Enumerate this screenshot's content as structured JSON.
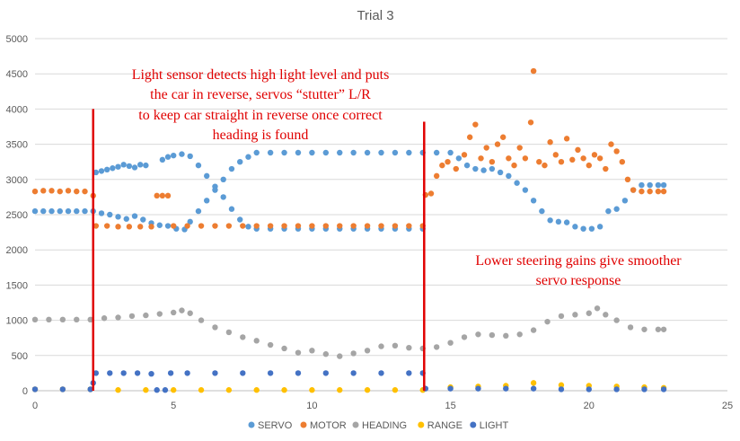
{
  "chart_data": {
    "type": "scatter",
    "title": "Trial 3",
    "xlabel": "",
    "ylabel": "",
    "xlim": [
      0,
      25
    ],
    "ylim": [
      0,
      5000
    ],
    "x_ticks": [
      0,
      5,
      10,
      15,
      20,
      25
    ],
    "y_ticks": [
      0,
      500,
      1000,
      1500,
      2000,
      2500,
      3000,
      3500,
      4000,
      4500,
      5000
    ],
    "grid": true,
    "legend_position": "bottom",
    "series": [
      {
        "name": "SERVO",
        "color": "#5b9bd5",
        "points": [
          [
            0.0,
            2550
          ],
          [
            0.3,
            2550
          ],
          [
            0.6,
            2550
          ],
          [
            0.9,
            2550
          ],
          [
            1.2,
            2550
          ],
          [
            1.5,
            2550
          ],
          [
            1.8,
            2550
          ],
          [
            2.1,
            2550
          ],
          [
            2.2,
            3100
          ],
          [
            2.4,
            3120
          ],
          [
            2.6,
            3140
          ],
          [
            2.8,
            3160
          ],
          [
            3.0,
            3180
          ],
          [
            3.2,
            3210
          ],
          [
            3.4,
            3190
          ],
          [
            3.6,
            3170
          ],
          [
            3.8,
            3210
          ],
          [
            4.0,
            3200
          ],
          [
            2.4,
            2520
          ],
          [
            2.7,
            2500
          ],
          [
            3.0,
            2470
          ],
          [
            3.3,
            2440
          ],
          [
            3.6,
            2480
          ],
          [
            3.9,
            2430
          ],
          [
            4.2,
            2380
          ],
          [
            4.5,
            2350
          ],
          [
            4.8,
            2340
          ],
          [
            5.1,
            2300
          ],
          [
            5.4,
            2290
          ],
          [
            4.6,
            3280
          ],
          [
            4.8,
            3320
          ],
          [
            5.0,
            3340
          ],
          [
            5.3,
            3360
          ],
          [
            5.6,
            3330
          ],
          [
            5.9,
            3200
          ],
          [
            6.2,
            3050
          ],
          [
            6.5,
            2900
          ],
          [
            6.8,
            2750
          ],
          [
            7.1,
            2580
          ],
          [
            7.4,
            2430
          ],
          [
            7.7,
            2330
          ],
          [
            8.0,
            2300
          ],
          [
            5.6,
            2400
          ],
          [
            5.9,
            2550
          ],
          [
            6.2,
            2700
          ],
          [
            6.5,
            2850
          ],
          [
            6.8,
            3000
          ],
          [
            7.1,
            3150
          ],
          [
            7.4,
            3250
          ],
          [
            7.7,
            3320
          ],
          [
            8.0,
            3380
          ],
          [
            8.5,
            3380
          ],
          [
            9.0,
            3380
          ],
          [
            9.5,
            3380
          ],
          [
            10,
            3380
          ],
          [
            10.5,
            3380
          ],
          [
            11,
            3380
          ],
          [
            11.5,
            3380
          ],
          [
            12,
            3380
          ],
          [
            12.5,
            3380
          ],
          [
            13,
            3380
          ],
          [
            13.5,
            3380
          ],
          [
            14,
            3380
          ],
          [
            14.5,
            3380
          ],
          [
            15,
            3380
          ],
          [
            8.5,
            2300
          ],
          [
            9.0,
            2300
          ],
          [
            9.5,
            2300
          ],
          [
            10,
            2300
          ],
          [
            10.5,
            2300
          ],
          [
            11,
            2300
          ],
          [
            11.5,
            2300
          ],
          [
            12,
            2300
          ],
          [
            12.5,
            2300
          ],
          [
            13,
            2300
          ],
          [
            13.5,
            2300
          ],
          [
            14,
            2300
          ],
          [
            15.3,
            3300
          ],
          [
            15.6,
            3200
          ],
          [
            15.9,
            3150
          ],
          [
            16.2,
            3130
          ],
          [
            16.5,
            3150
          ],
          [
            16.8,
            3100
          ],
          [
            17.1,
            3050
          ],
          [
            17.4,
            2950
          ],
          [
            17.7,
            2850
          ],
          [
            18.0,
            2700
          ],
          [
            18.3,
            2550
          ],
          [
            18.6,
            2420
          ],
          [
            18.9,
            2400
          ],
          [
            19.2,
            2390
          ],
          [
            19.5,
            2330
          ],
          [
            19.8,
            2300
          ],
          [
            20.1,
            2300
          ],
          [
            20.4,
            2330
          ],
          [
            20.7,
            2550
          ],
          [
            21.0,
            2580
          ],
          [
            21.3,
            2700
          ],
          [
            21.6,
            2850
          ],
          [
            21.9,
            2920
          ],
          [
            22.2,
            2920
          ],
          [
            22.5,
            2920
          ],
          [
            22.7,
            2920
          ]
        ]
      },
      {
        "name": "MOTOR",
        "color": "#ed7d31",
        "points": [
          [
            0.0,
            2830
          ],
          [
            0.3,
            2840
          ],
          [
            0.6,
            2840
          ],
          [
            0.9,
            2830
          ],
          [
            1.2,
            2840
          ],
          [
            1.5,
            2830
          ],
          [
            1.8,
            2830
          ],
          [
            2.1,
            2770
          ],
          [
            2.2,
            2340
          ],
          [
            2.6,
            2340
          ],
          [
            3.0,
            2330
          ],
          [
            3.4,
            2330
          ],
          [
            3.8,
            2330
          ],
          [
            4.2,
            2330
          ],
          [
            4.4,
            2770
          ],
          [
            4.6,
            2770
          ],
          [
            4.8,
            2770
          ],
          [
            5.0,
            2340
          ],
          [
            5.5,
            2340
          ],
          [
            6.0,
            2340
          ],
          [
            6.5,
            2340
          ],
          [
            7.0,
            2340
          ],
          [
            7.5,
            2340
          ],
          [
            8.0,
            2340
          ],
          [
            8.5,
            2340
          ],
          [
            9.0,
            2340
          ],
          [
            9.5,
            2340
          ],
          [
            10,
            2340
          ],
          [
            10.5,
            2340
          ],
          [
            11,
            2340
          ],
          [
            11.5,
            2340
          ],
          [
            12,
            2340
          ],
          [
            12.5,
            2340
          ],
          [
            13,
            2340
          ],
          [
            13.5,
            2340
          ],
          [
            14,
            2340
          ],
          [
            14.1,
            2780
          ],
          [
            14.3,
            2800
          ],
          [
            14.5,
            3050
          ],
          [
            14.7,
            3200
          ],
          [
            14.9,
            3250
          ],
          [
            15.2,
            3150
          ],
          [
            15.5,
            3350
          ],
          [
            15.7,
            3600
          ],
          [
            15.9,
            3780
          ],
          [
            16.1,
            3300
          ],
          [
            16.3,
            3450
          ],
          [
            16.5,
            3250
          ],
          [
            16.7,
            3500
          ],
          [
            16.9,
            3600
          ],
          [
            17.1,
            3300
          ],
          [
            17.3,
            3200
          ],
          [
            17.5,
            3450
          ],
          [
            17.7,
            3300
          ],
          [
            17.9,
            3810
          ],
          [
            18.0,
            4540
          ],
          [
            18.2,
            3250
          ],
          [
            18.4,
            3200
          ],
          [
            18.6,
            3530
          ],
          [
            18.8,
            3350
          ],
          [
            19.0,
            3250
          ],
          [
            19.2,
            3580
          ],
          [
            19.4,
            3280
          ],
          [
            19.6,
            3420
          ],
          [
            19.8,
            3300
          ],
          [
            20.0,
            3200
          ],
          [
            20.2,
            3350
          ],
          [
            20.4,
            3300
          ],
          [
            20.6,
            3150
          ],
          [
            20.8,
            3500
          ],
          [
            21.0,
            3400
          ],
          [
            21.2,
            3250
          ],
          [
            21.4,
            3000
          ],
          [
            21.6,
            2850
          ],
          [
            21.9,
            2830
          ],
          [
            22.2,
            2830
          ],
          [
            22.5,
            2830
          ],
          [
            22.7,
            2830
          ]
        ]
      },
      {
        "name": "HEADING",
        "color": "#a5a5a5",
        "points": [
          [
            0.0,
            1010
          ],
          [
            0.5,
            1010
          ],
          [
            1.0,
            1010
          ],
          [
            1.5,
            1010
          ],
          [
            2.0,
            1010
          ],
          [
            2.5,
            1030
          ],
          [
            3.0,
            1040
          ],
          [
            3.5,
            1060
          ],
          [
            4.0,
            1070
          ],
          [
            4.5,
            1090
          ],
          [
            5.0,
            1110
          ],
          [
            5.3,
            1140
          ],
          [
            5.6,
            1100
          ],
          [
            6.0,
            1000
          ],
          [
            6.5,
            900
          ],
          [
            7.0,
            830
          ],
          [
            7.5,
            760
          ],
          [
            8.0,
            710
          ],
          [
            8.5,
            650
          ],
          [
            9.0,
            600
          ],
          [
            9.5,
            540
          ],
          [
            10.0,
            570
          ],
          [
            10.5,
            520
          ],
          [
            11.0,
            490
          ],
          [
            11.5,
            530
          ],
          [
            12.0,
            570
          ],
          [
            12.5,
            630
          ],
          [
            13.0,
            640
          ],
          [
            13.5,
            610
          ],
          [
            14.0,
            600
          ],
          [
            14.5,
            620
          ],
          [
            15.0,
            680
          ],
          [
            15.5,
            760
          ],
          [
            16.0,
            800
          ],
          [
            16.5,
            790
          ],
          [
            17.0,
            780
          ],
          [
            17.5,
            800
          ],
          [
            18.0,
            860
          ],
          [
            18.5,
            980
          ],
          [
            19.0,
            1060
          ],
          [
            19.5,
            1080
          ],
          [
            20.0,
            1100
          ],
          [
            20.3,
            1170
          ],
          [
            20.6,
            1080
          ],
          [
            21.0,
            1000
          ],
          [
            21.5,
            900
          ],
          [
            22.0,
            870
          ],
          [
            22.5,
            870
          ],
          [
            22.7,
            870
          ]
        ]
      },
      {
        "name": "RANGE",
        "color": "#ffc000",
        "points": [
          [
            0.0,
            20
          ],
          [
            1.0,
            20
          ],
          [
            2.0,
            20
          ],
          [
            3.0,
            10
          ],
          [
            4.0,
            10
          ],
          [
            5.0,
            10
          ],
          [
            6.0,
            10
          ],
          [
            7.0,
            10
          ],
          [
            8.0,
            10
          ],
          [
            9.0,
            10
          ],
          [
            10.0,
            10
          ],
          [
            11.0,
            10
          ],
          [
            12.0,
            10
          ],
          [
            13.0,
            10
          ],
          [
            14.0,
            10
          ],
          [
            15.0,
            50
          ],
          [
            16.0,
            60
          ],
          [
            17.0,
            70
          ],
          [
            18.0,
            110
          ],
          [
            19.0,
            80
          ],
          [
            20.0,
            70
          ],
          [
            21.0,
            60
          ],
          [
            22.0,
            50
          ],
          [
            22.7,
            40
          ]
        ]
      },
      {
        "name": "LIGHT",
        "color": "#4472c4",
        "points": [
          [
            0.0,
            20
          ],
          [
            1.0,
            20
          ],
          [
            2.0,
            20
          ],
          [
            2.1,
            110
          ],
          [
            2.2,
            250
          ],
          [
            2.7,
            250
          ],
          [
            3.2,
            250
          ],
          [
            3.7,
            250
          ],
          [
            4.2,
            240
          ],
          [
            4.4,
            10
          ],
          [
            4.7,
            10
          ],
          [
            4.9,
            250
          ],
          [
            5.5,
            250
          ],
          [
            6.5,
            250
          ],
          [
            7.5,
            250
          ],
          [
            8.5,
            250
          ],
          [
            9.5,
            250
          ],
          [
            10.5,
            250
          ],
          [
            11.5,
            250
          ],
          [
            12.5,
            250
          ],
          [
            13.5,
            250
          ],
          [
            14.0,
            250
          ],
          [
            14.1,
            30
          ],
          [
            15.0,
            30
          ],
          [
            16.0,
            30
          ],
          [
            17.0,
            30
          ],
          [
            18.0,
            30
          ],
          [
            19.0,
            20
          ],
          [
            20.0,
            20
          ],
          [
            21.0,
            20
          ],
          [
            22.0,
            20
          ],
          [
            22.7,
            20
          ]
        ]
      }
    ],
    "annotations": [
      {
        "id": "a1",
        "lines": [
          "Light sensor detects high light level and puts",
          "the car in reverse, servos “stutter” L/R",
          "to keep car straight in reverse once correct",
          "heading is found"
        ],
        "color": "#e00000"
      },
      {
        "id": "a2",
        "lines": [
          "Lower steering gains give smoother",
          "servo response"
        ],
        "color": "#e00000"
      }
    ],
    "vertical_markers": [
      {
        "x": 2.1,
        "y_top": 4000,
        "color": "#e00000"
      },
      {
        "x": 14.05,
        "y_top": 3820,
        "color": "#e00000"
      }
    ]
  }
}
